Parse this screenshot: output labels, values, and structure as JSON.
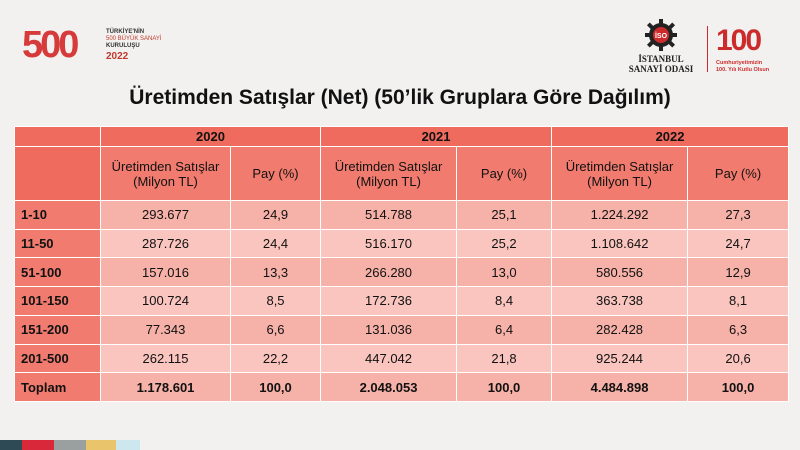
{
  "brand_left": {
    "digits": "500",
    "line1": "TÜRKİYE'NİN",
    "line2": "500 BÜYÜK SANAYİ",
    "line3": "KURULUŞU",
    "year": "2022"
  },
  "brand_iso": {
    "mark": "İSO",
    "name_line1": "İSTANBUL",
    "name_line2": "SANAYİ ODASI"
  },
  "brand_100": {
    "num": "100",
    "line1": "Cumhuriyetimizin",
    "line2": "100. Yılı Kutlu Olsun"
  },
  "title": "Üretimden Satışlar (Net) (50’lik Gruplara Göre Dağılım)",
  "table": {
    "years": [
      "2020",
      "2021",
      "2022"
    ],
    "sub_headers": [
      "Üretimden Satışlar (Milyon TL)",
      "Pay (%)",
      "Üretimden Satışlar (Milyon TL)",
      "Pay (%)",
      "Üretimden Satışlar (Milyon TL)",
      "Pay (%)"
    ],
    "rows": [
      {
        "label": "1-10",
        "v": [
          "293.677",
          "24,9",
          "514.788",
          "25,1",
          "1.224.292",
          "27,3"
        ]
      },
      {
        "label": "11-50",
        "v": [
          "287.726",
          "24,4",
          "516.170",
          "25,2",
          "1.108.642",
          "24,7"
        ]
      },
      {
        "label": "51-100",
        "v": [
          "157.016",
          "13,3",
          "266.280",
          "13,0",
          "580.556",
          "12,9"
        ]
      },
      {
        "label": "101-150",
        "v": [
          "100.724",
          "8,5",
          "172.736",
          "8,4",
          "363.738",
          "8,1"
        ]
      },
      {
        "label": "151-200",
        "v": [
          "77.343",
          "6,6",
          "131.036",
          "6,4",
          "282.428",
          "6,3"
        ]
      },
      {
        "label": "201-500",
        "v": [
          "262.115",
          "22,2",
          "447.042",
          "21,8",
          "925.244",
          "20,6"
        ]
      },
      {
        "label": "Toplam",
        "v": [
          "1.178.601",
          "100,0",
          "2.048.053",
          "100,0",
          "4.484.898",
          "100,0"
        ]
      }
    ]
  },
  "colors": {
    "accent_red": "#cc2b2b",
    "header_bg": "#ef6b5d",
    "cell_bg": "#f6b1a8"
  }
}
